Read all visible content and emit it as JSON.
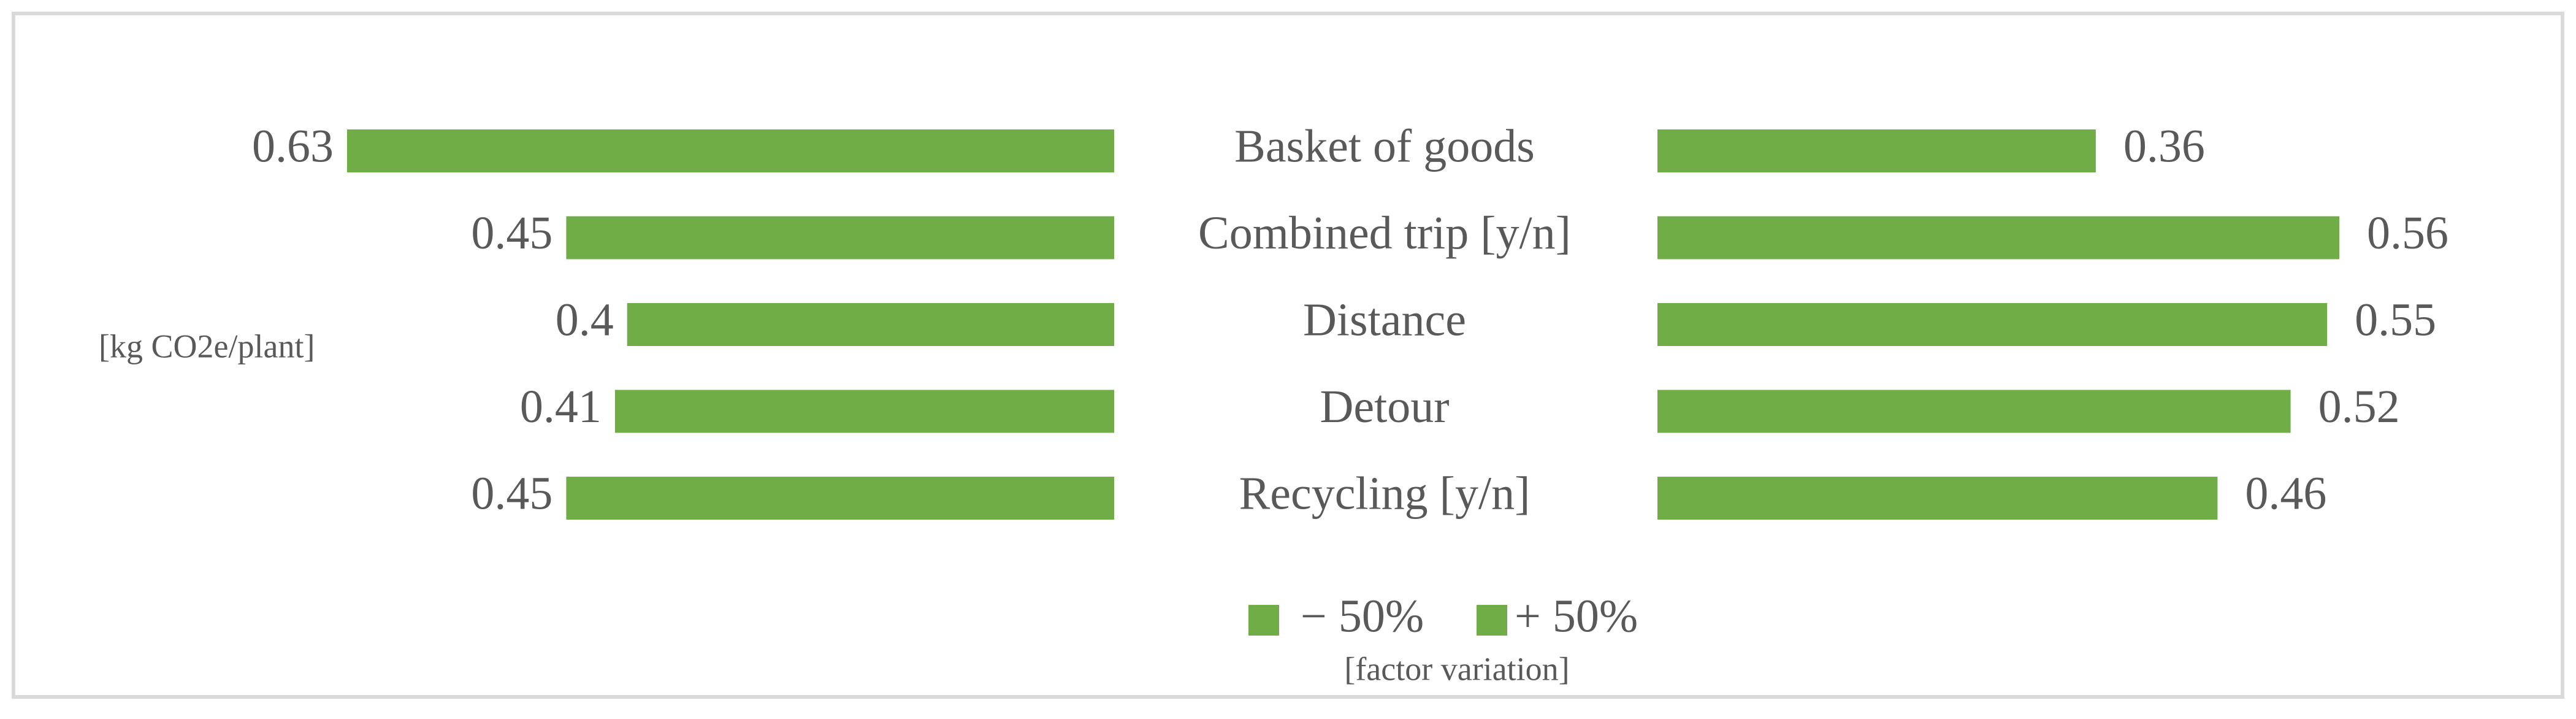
{
  "chart_data": {
    "type": "butterfly-bar",
    "categories": [
      "Basket of goods",
      "Combined trip [y/n]",
      "Distance",
      "Detour",
      "Recycling [y/n]"
    ],
    "series": [
      {
        "name": "− 50%",
        "color": "#70ad47",
        "values": [
          0.63,
          0.45,
          0.4,
          0.41,
          0.45
        ]
      },
      {
        "name": "+ 50%",
        "color": "#70ad47",
        "values": [
          0.36,
          0.56,
          0.55,
          0.52,
          0.46
        ]
      }
    ],
    "y_label": "[kg CO2e/plant]",
    "legend_title": "[factor variation]"
  }
}
